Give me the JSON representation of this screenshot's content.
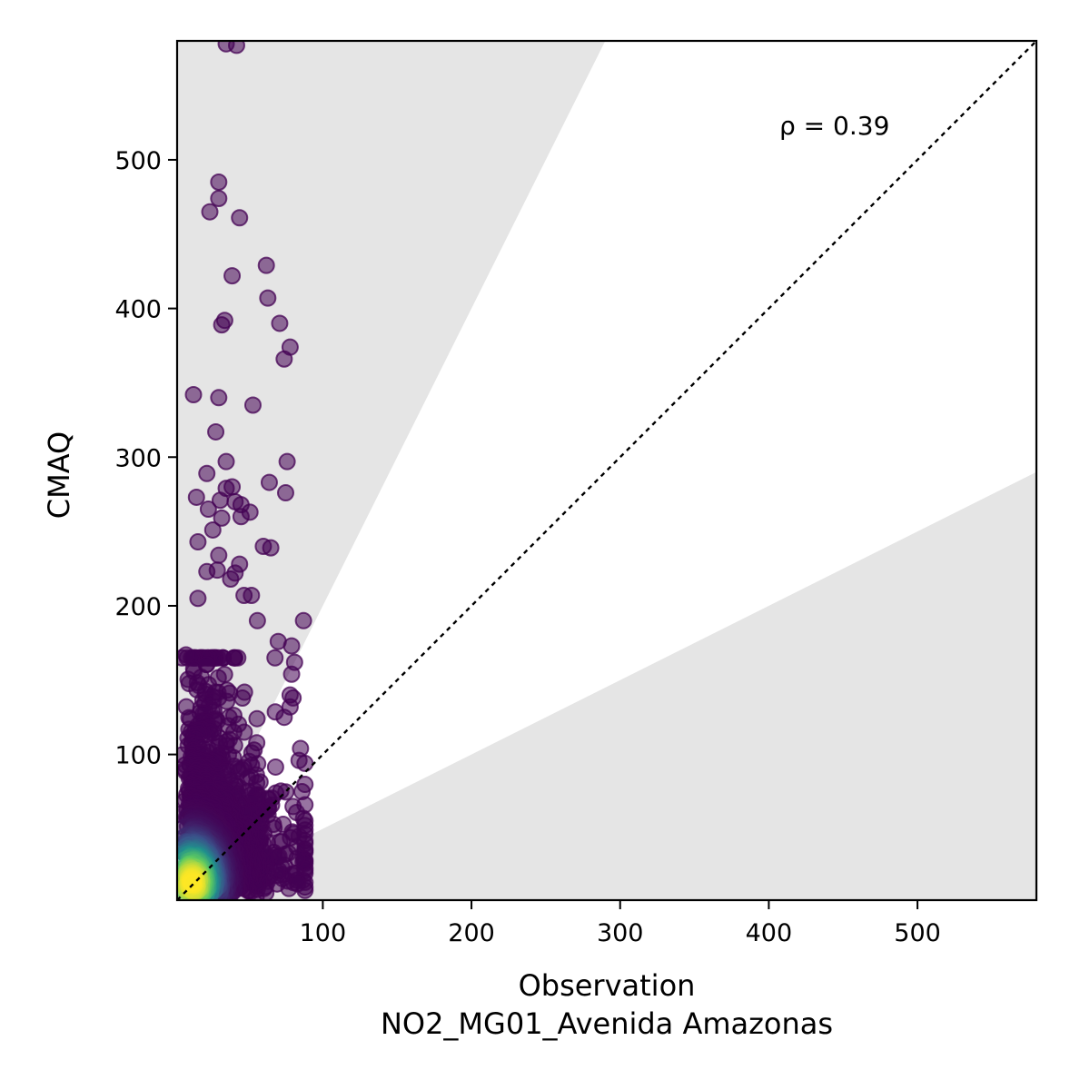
{
  "chart_data": {
    "type": "scatter",
    "title": "",
    "xlabel": "Observation",
    "xlabel_sub": "NO2_MG01_Avenida Amazonas",
    "ylabel": "CMAQ",
    "xlim": [
      2,
      580
    ],
    "ylim": [
      2,
      580
    ],
    "xticks": [
      100,
      200,
      300,
      400,
      500
    ],
    "yticks": [
      100,
      200,
      300,
      400,
      500
    ],
    "xtick_labels": [
      "100",
      "200",
      "300",
      "400",
      "500"
    ],
    "ytick_labels": [
      "100",
      "200",
      "300",
      "400",
      "500"
    ],
    "annotation": "ρ = 0.39",
    "identity_line": true,
    "band_upper_slope": 2,
    "band_lower_slope": 0.5,
    "colormap": "viridis",
    "colors": {
      "band": "#e5e5e5",
      "low_density": "#440154",
      "mid_density": "#31688e",
      "high_density": "#35b779",
      "peak_density": "#fde725"
    },
    "outlier_points": [
      [
        35,
        578
      ],
      [
        42,
        577
      ],
      [
        30,
        485
      ],
      [
        30,
        474
      ],
      [
        24,
        465
      ],
      [
        44,
        461
      ],
      [
        62,
        429
      ],
      [
        39,
        422
      ],
      [
        63,
        407
      ],
      [
        71,
        390
      ],
      [
        34,
        392
      ],
      [
        32,
        389
      ],
      [
        78,
        374
      ],
      [
        74,
        366
      ],
      [
        13,
        342
      ],
      [
        30,
        340
      ],
      [
        53,
        335
      ],
      [
        28,
        317
      ],
      [
        35,
        297
      ],
      [
        76,
        297
      ],
      [
        22,
        289
      ],
      [
        64,
        283
      ],
      [
        39,
        280
      ],
      [
        35,
        279
      ],
      [
        75,
        276
      ],
      [
        15,
        273
      ],
      [
        31,
        271
      ],
      [
        41,
        270
      ],
      [
        45,
        268
      ],
      [
        51,
        263
      ],
      [
        23,
        265
      ],
      [
        32,
        259
      ],
      [
        26,
        251
      ],
      [
        45,
        260
      ],
      [
        16,
        243
      ],
      [
        60,
        240
      ],
      [
        65,
        239
      ],
      [
        44,
        228
      ],
      [
        30,
        234
      ],
      [
        29,
        224
      ],
      [
        22,
        223
      ],
      [
        38,
        218
      ],
      [
        41,
        222
      ],
      [
        8,
        167
      ],
      [
        47,
        207
      ],
      [
        52,
        207
      ],
      [
        16,
        205
      ],
      [
        56,
        190
      ],
      [
        87,
        190
      ],
      [
        70,
        176
      ],
      [
        79,
        173
      ],
      [
        81,
        162
      ],
      [
        79,
        154
      ],
      [
        85,
        104
      ],
      [
        84,
        96
      ],
      [
        80,
        138
      ],
      [
        78,
        132
      ],
      [
        74,
        125
      ],
      [
        88,
        94
      ],
      [
        87,
        57
      ],
      [
        84,
        45
      ],
      [
        88,
        14
      ],
      [
        83,
        13
      ],
      [
        86,
        75
      ],
      [
        80,
        65
      ],
      [
        78,
        140
      ]
    ]
  }
}
